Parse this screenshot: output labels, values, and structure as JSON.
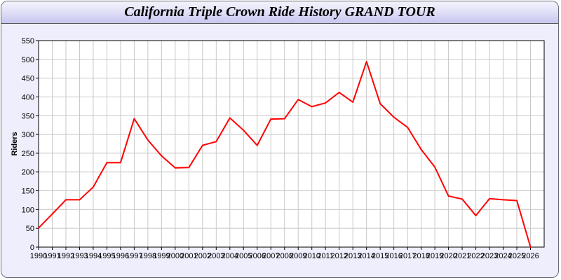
{
  "chart_data": {
    "type": "line",
    "title": "California Triple Crown Ride History GRAND TOUR",
    "xlabel": "",
    "ylabel": "Riders",
    "xlim": [
      1990,
      2027
    ],
    "ylim": [
      0,
      550
    ],
    "yticks": [
      0,
      50,
      100,
      150,
      200,
      250,
      300,
      350,
      400,
      450,
      500,
      550
    ],
    "grid": true,
    "line_color": "#ff0000",
    "x": [
      1990,
      1991,
      1992,
      1993,
      1994,
      1995,
      1996,
      1997,
      1998,
      1999,
      2000,
      2001,
      2002,
      2003,
      2004,
      2005,
      2006,
      2007,
      2008,
      2009,
      2010,
      2011,
      2012,
      2013,
      2014,
      2015,
      2016,
      2017,
      2018,
      2019,
      2020,
      2021,
      2022,
      2023,
      2024,
      2025,
      2026
    ],
    "series": [
      {
        "values": [
          51,
          88,
          126,
          126,
          160,
          225,
          225,
          342,
          285,
          243,
          211,
          212,
          271,
          281,
          344,
          311,
          271,
          341,
          342,
          393,
          374,
          384,
          412,
          386,
          494,
          382,
          346,
          319,
          260,
          213,
          136,
          128,
          84,
          129,
          126,
          124,
          0
        ]
      }
    ]
  }
}
